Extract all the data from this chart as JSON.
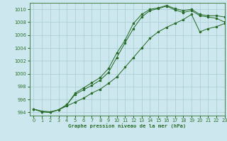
{
  "title": "Graphe pression niveau de la mer (hPa)",
  "bg_color": "#cce8ee",
  "grid_color": "#aaccd4",
  "line_color": "#2d6e2d",
  "marker_color": "#2d6e2d",
  "xlim": [
    -0.5,
    23
  ],
  "ylim": [
    993.5,
    1011.0
  ],
  "xticks": [
    0,
    1,
    2,
    3,
    4,
    5,
    6,
    7,
    8,
    9,
    10,
    11,
    12,
    13,
    14,
    15,
    16,
    17,
    18,
    19,
    20,
    21,
    22,
    23
  ],
  "yticks": [
    994,
    996,
    998,
    1000,
    1002,
    1004,
    1006,
    1008,
    1010
  ],
  "series1_x": [
    0,
    1,
    2,
    3,
    4,
    5,
    6,
    7,
    8,
    9,
    10,
    11,
    12,
    13,
    14,
    15,
    16,
    17,
    18,
    19,
    20,
    21,
    22,
    23
  ],
  "series1_y": [
    994.5,
    994.1,
    994.0,
    994.4,
    995.2,
    997.0,
    997.8,
    998.6,
    999.4,
    1000.8,
    1003.2,
    1005.2,
    1007.8,
    1009.2,
    1010.0,
    1010.2,
    1010.6,
    1010.1,
    1009.8,
    1010.0,
    1009.2,
    1009.0,
    1009.0,
    1008.8
  ],
  "series2_x": [
    0,
    1,
    2,
    3,
    4,
    5,
    6,
    7,
    8,
    9,
    10,
    11,
    12,
    13,
    14,
    15,
    16,
    17,
    18,
    19,
    20,
    21,
    22,
    23
  ],
  "series2_y": [
    994.5,
    994.1,
    994.0,
    994.4,
    995.2,
    996.8,
    997.5,
    998.2,
    999.0,
    1000.2,
    1002.5,
    1004.8,
    1007.0,
    1008.8,
    1009.8,
    1010.1,
    1010.5,
    1009.9,
    1009.5,
    1009.8,
    1009.0,
    1008.8,
    1008.6,
    1008.0
  ],
  "series3_x": [
    0,
    1,
    2,
    3,
    4,
    5,
    6,
    7,
    8,
    9,
    10,
    11,
    12,
    13,
    14,
    15,
    16,
    17,
    18,
    19,
    20,
    21,
    22,
    23
  ],
  "series3_y": [
    994.5,
    994.2,
    994.1,
    994.4,
    995.0,
    995.6,
    996.2,
    997.0,
    997.6,
    998.5,
    999.5,
    1001.0,
    1002.5,
    1004.0,
    1005.5,
    1006.5,
    1007.2,
    1007.8,
    1008.4,
    1009.2,
    1006.5,
    1007.0,
    1007.3,
    1007.8
  ]
}
